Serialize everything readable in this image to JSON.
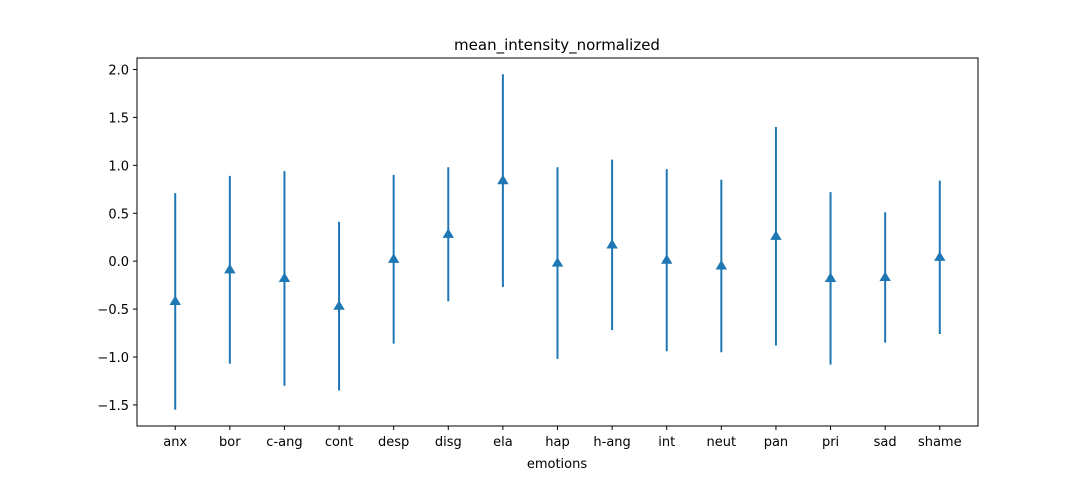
{
  "chart_data": {
    "type": "errorbar",
    "title": "mean_intensity_normalized",
    "xlabel": "emotions",
    "ylabel": "",
    "categories": [
      "anx",
      "bor",
      "c-ang",
      "cont",
      "desp",
      "disg",
      "ela",
      "hap",
      "h-ang",
      "int",
      "neut",
      "pan",
      "pri",
      "sad",
      "shame"
    ],
    "means": [
      -0.42,
      -0.09,
      -0.18,
      -0.47,
      0.02,
      0.28,
      0.84,
      -0.02,
      0.17,
      0.01,
      -0.05,
      0.26,
      -0.18,
      -0.17,
      0.04
    ],
    "std": [
      1.13,
      0.98,
      1.12,
      0.88,
      0.88,
      0.7,
      1.11,
      1.0,
      0.89,
      0.95,
      0.9,
      1.14,
      0.9,
      0.68,
      0.8
    ],
    "ylim": [
      -1.72,
      2.12
    ],
    "yticks": [
      -1.5,
      -1.0,
      -0.5,
      0.0,
      0.5,
      1.0,
      1.5,
      2.0
    ],
    "ytick_labels": [
      "−1.5",
      "−1.0",
      "−0.5",
      "0.0",
      "0.5",
      "1.0",
      "1.5",
      "2.0"
    ],
    "marker": "triangle-up",
    "grid": false,
    "colors": {
      "series": "#1f77b4",
      "axes": "#000000",
      "background": "#ffffff"
    }
  }
}
